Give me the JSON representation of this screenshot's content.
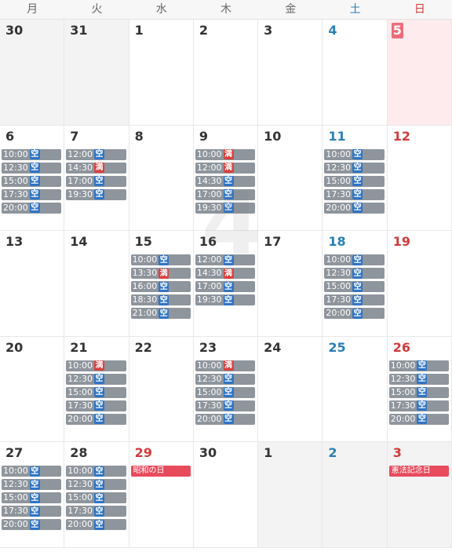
{
  "month_watermark": "4",
  "weekdays": [
    "月",
    "火",
    "水",
    "木",
    "金",
    "土",
    "日"
  ],
  "badges": {
    "vacant": "空",
    "full": "満"
  },
  "colors": {
    "saturday": "#2a7fb6",
    "sunday": "#d23a3a",
    "vacant": "#2f74c6",
    "full": "#d9413e",
    "slot_bg": "#8e959c"
  },
  "weeks": [
    [
      {
        "day": "30",
        "outside": true,
        "slots": []
      },
      {
        "day": "31",
        "outside": true,
        "slots": []
      },
      {
        "day": "1",
        "slots": []
      },
      {
        "day": "2",
        "slots": []
      },
      {
        "day": "3",
        "slots": []
      },
      {
        "day": "4",
        "slots": []
      },
      {
        "day": "5",
        "highlight": true,
        "slots": []
      }
    ],
    [
      {
        "day": "6",
        "slots": [
          {
            "time": "10:00",
            "status": "vacant"
          },
          {
            "time": "12:30",
            "status": "vacant"
          },
          {
            "time": "15:00",
            "status": "vacant"
          },
          {
            "time": "17:30",
            "status": "vacant"
          },
          {
            "time": "20:00",
            "status": "vacant"
          }
        ]
      },
      {
        "day": "7",
        "slots": [
          {
            "time": "12:00",
            "status": "vacant"
          },
          {
            "time": "14:30",
            "status": "full"
          },
          {
            "time": "17:00",
            "status": "vacant"
          },
          {
            "time": "19:30",
            "status": "vacant"
          }
        ]
      },
      {
        "day": "8",
        "slots": []
      },
      {
        "day": "9",
        "slots": [
          {
            "time": "10:00",
            "status": "full"
          },
          {
            "time": "12:00",
            "status": "full"
          },
          {
            "time": "14:30",
            "status": "vacant"
          },
          {
            "time": "17:00",
            "status": "vacant"
          },
          {
            "time": "19:30",
            "status": "vacant"
          }
        ]
      },
      {
        "day": "10",
        "slots": []
      },
      {
        "day": "11",
        "slots": [
          {
            "time": "10:00",
            "status": "vacant"
          },
          {
            "time": "12:30",
            "status": "vacant"
          },
          {
            "time": "15:00",
            "status": "vacant"
          },
          {
            "time": "17:30",
            "status": "vacant"
          },
          {
            "time": "20:00",
            "status": "vacant"
          }
        ]
      },
      {
        "day": "12",
        "slots": []
      }
    ],
    [
      {
        "day": "13",
        "slots": []
      },
      {
        "day": "14",
        "slots": []
      },
      {
        "day": "15",
        "slots": [
          {
            "time": "10:00",
            "status": "vacant"
          },
          {
            "time": "13:30",
            "status": "full"
          },
          {
            "time": "16:00",
            "status": "vacant"
          },
          {
            "time": "18:30",
            "status": "vacant"
          },
          {
            "time": "21:00",
            "status": "vacant"
          }
        ]
      },
      {
        "day": "16",
        "slots": [
          {
            "time": "12:00",
            "status": "vacant"
          },
          {
            "time": "14:30",
            "status": "full"
          },
          {
            "time": "17:00",
            "status": "vacant"
          },
          {
            "time": "19:30",
            "status": "vacant"
          }
        ]
      },
      {
        "day": "17",
        "slots": []
      },
      {
        "day": "18",
        "slots": [
          {
            "time": "10:00",
            "status": "vacant"
          },
          {
            "time": "12:30",
            "status": "vacant"
          },
          {
            "time": "15:00",
            "status": "vacant"
          },
          {
            "time": "17:30",
            "status": "vacant"
          },
          {
            "time": "20:00",
            "status": "vacant"
          }
        ]
      },
      {
        "day": "19",
        "slots": []
      }
    ],
    [
      {
        "day": "20",
        "slots": []
      },
      {
        "day": "21",
        "slots": [
          {
            "time": "10:00",
            "status": "full"
          },
          {
            "time": "12:30",
            "status": "vacant"
          },
          {
            "time": "15:00",
            "status": "vacant"
          },
          {
            "time": "17:30",
            "status": "vacant"
          },
          {
            "time": "20:00",
            "status": "vacant"
          }
        ]
      },
      {
        "day": "22",
        "slots": []
      },
      {
        "day": "23",
        "slots": [
          {
            "time": "10:00",
            "status": "full"
          },
          {
            "time": "12:30",
            "status": "vacant"
          },
          {
            "time": "15:00",
            "status": "vacant"
          },
          {
            "time": "17:30",
            "status": "vacant"
          },
          {
            "time": "20:00",
            "status": "vacant"
          }
        ]
      },
      {
        "day": "24",
        "slots": []
      },
      {
        "day": "25",
        "slots": []
      },
      {
        "day": "26",
        "slots": [
          {
            "time": "10:00",
            "status": "vacant"
          },
          {
            "time": "12:30",
            "status": "vacant"
          },
          {
            "time": "15:00",
            "status": "vacant"
          },
          {
            "time": "17:30",
            "status": "vacant"
          },
          {
            "time": "20:00",
            "status": "vacant"
          }
        ]
      }
    ],
    [
      {
        "day": "27",
        "slots": [
          {
            "time": "10:00",
            "status": "vacant"
          },
          {
            "time": "12:30",
            "status": "vacant"
          },
          {
            "time": "15:00",
            "status": "vacant"
          },
          {
            "time": "17:30",
            "status": "vacant"
          },
          {
            "time": "20:00",
            "status": "vacant"
          }
        ]
      },
      {
        "day": "28",
        "slots": [
          {
            "time": "10:00",
            "status": "vacant"
          },
          {
            "time": "12:30",
            "status": "vacant"
          },
          {
            "time": "15:00",
            "status": "vacant"
          },
          {
            "time": "17:30",
            "status": "vacant"
          },
          {
            "time": "20:00",
            "status": "vacant"
          }
        ]
      },
      {
        "day": "29",
        "holiday": "昭和の日",
        "slots": []
      },
      {
        "day": "30",
        "slots": []
      },
      {
        "day": "1",
        "outside": true,
        "slots": []
      },
      {
        "day": "2",
        "outside": true,
        "slots": []
      },
      {
        "day": "3",
        "outside": true,
        "holiday": "憲法記念日",
        "slots": []
      }
    ]
  ]
}
